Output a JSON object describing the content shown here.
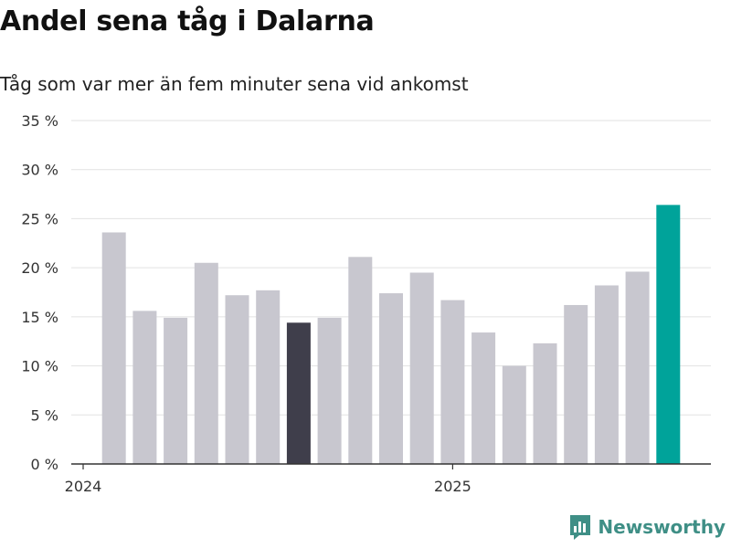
{
  "chart_data": {
    "type": "bar",
    "title": "Andel sena tåg i Dalarna",
    "subtitle": "Tåg som var mer än fem minuter sena vid ankomst",
    "xlabel": "",
    "ylabel": "",
    "ylim": [
      0,
      35
    ],
    "y_ticks": [
      0,
      5,
      10,
      15,
      20,
      25,
      30,
      35
    ],
    "y_tick_labels": [
      "0 %",
      "5 %",
      "10 %",
      "15 %",
      "20 %",
      "25 %",
      "30 %",
      "35 %"
    ],
    "x_tick_labels": [
      {
        "label": "2024",
        "month": "2024-01"
      },
      {
        "label": "2025",
        "month": "2025-01"
      }
    ],
    "categories": [
      "2024-02",
      "2024-03",
      "2024-04",
      "2024-05",
      "2024-06",
      "2024-07",
      "2024-08",
      "2024-09",
      "2024-10",
      "2024-11",
      "2024-12",
      "2025-01",
      "2025-02",
      "2025-03",
      "2025-04",
      "2025-05",
      "2025-06",
      "2025-07",
      "2025-08"
    ],
    "values": [
      23.6,
      15.6,
      14.9,
      20.5,
      17.2,
      17.7,
      14.4,
      14.9,
      21.1,
      17.4,
      19.5,
      16.7,
      13.4,
      10.0,
      12.3,
      16.2,
      18.2,
      19.6,
      26.4
    ],
    "grid": true,
    "colors": {
      "default": "#c8c7cf",
      "highlight_dark": "#3f3e4b",
      "highlight_latest": "#00a39a",
      "grid": "#e2e2e2",
      "axis": "#333333"
    },
    "highlight": {
      "2024-08": "highlight_dark",
      "2025-08": "highlight_latest"
    }
  },
  "brand": {
    "name": "Newsworthy",
    "color": "#3f8f86"
  }
}
